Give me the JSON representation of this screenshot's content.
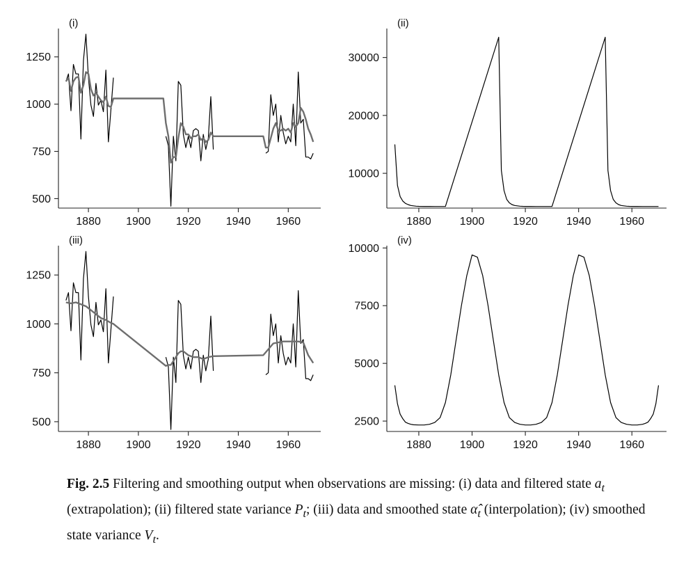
{
  "chart_data": [
    {
      "type": "line",
      "panel_label": "(i)",
      "xlim": [
        1868,
        1973
      ],
      "ylim": [
        450,
        1400
      ],
      "xticks": [
        1880,
        1900,
        1920,
        1940,
        1960
      ],
      "yticks": [
        500,
        750,
        1000,
        1250
      ],
      "grid": false,
      "series": [
        {
          "role": "data",
          "color": "#000000",
          "segments": [
            {
              "x": [
                1871,
                1872,
                1873,
                1874,
                1875,
                1876,
                1877,
                1878,
                1879,
                1880,
                1881,
                1882,
                1883,
                1884,
                1885,
                1886,
                1887,
                1888,
                1889,
                1890
              ],
              "y": [
                1120,
                1160,
                965,
                1210,
                1160,
                1160,
                815,
                1230,
                1370,
                1140,
                995,
                935,
                1110,
                995,
                1020,
                960,
                1180,
                800,
                970,
                1140
              ]
            },
            {
              "x": [
                1911,
                1912,
                1913,
                1914,
                1915,
                1916,
                1917,
                1918,
                1919,
                1920,
                1921,
                1922,
                1923,
                1924,
                1925,
                1926,
                1927,
                1928,
                1929,
                1930
              ],
              "y": [
                830,
                780,
                460,
                830,
                700,
                1120,
                1100,
                840,
                770,
                830,
                770,
                860,
                870,
                860,
                700,
                840,
                760,
                820,
                1040,
                760
              ]
            },
            {
              "x": [
                1951,
                1952,
                1953,
                1954,
                1955,
                1956,
                1957,
                1958,
                1959,
                1960,
                1961,
                1962,
                1963,
                1964,
                1965,
                1966,
                1967,
                1968,
                1969,
                1970
              ],
              "y": [
                740,
                750,
                1050,
                940,
                1000,
                800,
                940,
                850,
                790,
                830,
                800,
                1000,
                780,
                1170,
                900,
                920,
                720,
                720,
                710,
                740
              ]
            }
          ]
        },
        {
          "role": "filtered state",
          "color": "#6e6e6e",
          "segments": [
            {
              "x": [
                1871,
                1872,
                1873,
                1874,
                1875,
                1876,
                1877,
                1878,
                1879,
                1880,
                1881,
                1882,
                1883,
                1884,
                1885,
                1886,
                1887,
                1888,
                1889,
                1890,
                1910,
                1911,
                1912,
                1913,
                1914,
                1915,
                1916,
                1917,
                1918,
                1919,
                1920,
                1921,
                1922,
                1923,
                1924,
                1925,
                1926,
                1927,
                1928,
                1929,
                1930,
                1950,
                1951,
                1952,
                1953,
                1954,
                1955,
                1956,
                1957,
                1958,
                1959,
                1960,
                1961,
                1962,
                1963,
                1964,
                1965,
                1966,
                1967,
                1968,
                1969,
                1970
              ],
              "y": [
                1120,
                1140,
                1070,
                1120,
                1140,
                1145,
                1060,
                1100,
                1170,
                1160,
                1080,
                1045,
                1060,
                1040,
                1020,
                1010,
                1040,
                990,
                985,
                1030,
                1030,
                900,
                830,
                690,
                720,
                720,
                820,
                900,
                880,
                840,
                840,
                820,
                830,
                830,
                840,
                810,
                820,
                800,
                810,
                850,
                830,
                830,
                770,
                770,
                820,
                870,
                900,
                860,
                860,
                870,
                860,
                870,
                850,
                900,
                880,
                900,
                980,
                960,
                920,
                870,
                840,
                800
              ]
            }
          ]
        }
      ]
    },
    {
      "type": "line",
      "panel_label": "(ii)",
      "xlim": [
        1868,
        1973
      ],
      "ylim": [
        4000,
        35000
      ],
      "xticks": [
        1880,
        1900,
        1920,
        1940,
        1960
      ],
      "yticks": [
        10000,
        20000,
        30000
      ],
      "grid": false,
      "series": [
        {
          "role": "filtered state variance",
          "color": "#000000",
          "segments": [
            {
              "x": [
                1871,
                1872,
                1873,
                1874,
                1875,
                1876,
                1877,
                1878,
                1879,
                1880,
                1882,
                1884,
                1886,
                1888,
                1890,
                1910,
                1911,
                1912,
                1913,
                1914,
                1915,
                1916,
                1917,
                1918,
                1919,
                1920,
                1922,
                1924,
                1926,
                1928,
                1930,
                1950,
                1951,
                1952,
                1953,
                1954,
                1955,
                1956,
                1957,
                1958,
                1959,
                1960,
                1962,
                1964,
                1966,
                1968,
                1970
              ],
              "y": [
                15000,
                7900,
                6000,
                5200,
                4800,
                4600,
                4450,
                4380,
                4330,
                4300,
                4290,
                4285,
                4282,
                4280,
                4280,
                33500,
                10500,
                7000,
                5500,
                4900,
                4600,
                4450,
                4380,
                4330,
                4300,
                4290,
                4285,
                4282,
                4280,
                4280,
                4280,
                33500,
                10500,
                7000,
                5500,
                4900,
                4600,
                4450,
                4380,
                4330,
                4300,
                4290,
                4285,
                4282,
                4280,
                4280,
                4280
              ]
            }
          ]
        }
      ]
    },
    {
      "type": "line",
      "panel_label": "(iii)",
      "xlim": [
        1868,
        1973
      ],
      "ylim": [
        450,
        1400
      ],
      "xticks": [
        1880,
        1900,
        1920,
        1940,
        1960
      ],
      "yticks": [
        500,
        750,
        1000,
        1250
      ],
      "grid": false,
      "series": [
        {
          "role": "data",
          "color": "#000000",
          "segments": [
            {
              "x": [
                1871,
                1872,
                1873,
                1874,
                1875,
                1876,
                1877,
                1878,
                1879,
                1880,
                1881,
                1882,
                1883,
                1884,
                1885,
                1886,
                1887,
                1888,
                1889,
                1890
              ],
              "y": [
                1120,
                1160,
                965,
                1210,
                1160,
                1160,
                815,
                1230,
                1370,
                1140,
                995,
                935,
                1110,
                995,
                1020,
                960,
                1180,
                800,
                970,
                1140
              ]
            },
            {
              "x": [
                1911,
                1912,
                1913,
                1914,
                1915,
                1916,
                1917,
                1918,
                1919,
                1920,
                1921,
                1922,
                1923,
                1924,
                1925,
                1926,
                1927,
                1928,
                1929,
                1930
              ],
              "y": [
                830,
                780,
                460,
                830,
                700,
                1120,
                1100,
                840,
                770,
                830,
                770,
                860,
                870,
                860,
                700,
                840,
                760,
                820,
                1040,
                760
              ]
            },
            {
              "x": [
                1951,
                1952,
                1953,
                1954,
                1955,
                1956,
                1957,
                1958,
                1959,
                1960,
                1961,
                1962,
                1963,
                1964,
                1965,
                1966,
                1967,
                1968,
                1969,
                1970
              ],
              "y": [
                740,
                750,
                1050,
                940,
                1000,
                800,
                940,
                850,
                790,
                830,
                800,
                1000,
                780,
                1170,
                900,
                920,
                720,
                720,
                710,
                740
              ]
            }
          ]
        },
        {
          "role": "smoothed state",
          "color": "#6e6e6e",
          "segments": [
            {
              "x": [
                1871,
                1873,
                1875,
                1877,
                1879,
                1881,
                1883,
                1885,
                1887,
                1889,
                1890,
                1911,
                1912,
                1913,
                1914,
                1915,
                1916,
                1917,
                1918,
                1920,
                1922,
                1924,
                1926,
                1928,
                1930,
                1950,
                1952,
                1954,
                1956,
                1958,
                1960,
                1962,
                1964,
                1966,
                1968,
                1970
              ],
              "y": [
                1110,
                1105,
                1110,
                1100,
                1090,
                1070,
                1050,
                1030,
                1020,
                1005,
                1000,
                785,
                790,
                790,
                810,
                830,
                850,
                860,
                860,
                840,
                830,
                830,
                820,
                830,
                835,
                840,
                870,
                900,
                905,
                910,
                910,
                910,
                910,
                905,
                840,
                800
              ]
            }
          ]
        }
      ]
    },
    {
      "type": "line",
      "panel_label": "(iv)",
      "xlim": [
        1868,
        1973
      ],
      "ylim": [
        2050,
        10100
      ],
      "xticks": [
        1880,
        1900,
        1920,
        1940,
        1960
      ],
      "yticks": [
        2500,
        5000,
        7500,
        10000
      ],
      "grid": false,
      "series": [
        {
          "role": "smoothed state variance",
          "color": "#000000",
          "segments": [
            {
              "x": [
                1871,
                1872,
                1873,
                1874,
                1875,
                1876,
                1877,
                1878,
                1880,
                1882,
                1884,
                1886,
                1888,
                1890,
                1892,
                1894,
                1896,
                1898,
                1900,
                1902,
                1904,
                1906,
                1908,
                1910,
                1912,
                1914,
                1916,
                1918,
                1920,
                1922,
                1924,
                1926,
                1928,
                1930,
                1932,
                1934,
                1936,
                1938,
                1940,
                1942,
                1944,
                1946,
                1948,
                1950,
                1952,
                1954,
                1956,
                1958,
                1960,
                1962,
                1964,
                1965,
                1966,
                1967,
                1968,
                1969,
                1970
              ],
              "y": [
                4050,
                3250,
                2800,
                2600,
                2450,
                2400,
                2360,
                2340,
                2330,
                2330,
                2360,
                2440,
                2650,
                3300,
                4500,
                6000,
                7500,
                8800,
                9700,
                9600,
                8800,
                7500,
                6000,
                4500,
                3300,
                2650,
                2440,
                2360,
                2330,
                2330,
                2360,
                2440,
                2650,
                3300,
                4500,
                6000,
                7500,
                8800,
                9700,
                9600,
                8800,
                7500,
                6000,
                4500,
                3300,
                2650,
                2440,
                2360,
                2330,
                2330,
                2360,
                2400,
                2450,
                2600,
                2800,
                3250,
                4050
              ]
            }
          ]
        }
      ]
    }
  ],
  "caption": {
    "fig_label": "Fig. 2.5",
    "text_html": "Filtering and smoothing output when observations are missing: (i) data and filtered state <i>a<sub>t</sub></i> (extrapolation); (ii) filtered state variance <i>P<sub>t</sub></i>; (iii) data and smoothed state <i>α̂<sub>t</sub></i> (interpolation); (iv) smoothed state variance <i>V<sub>t</sub></i>."
  }
}
